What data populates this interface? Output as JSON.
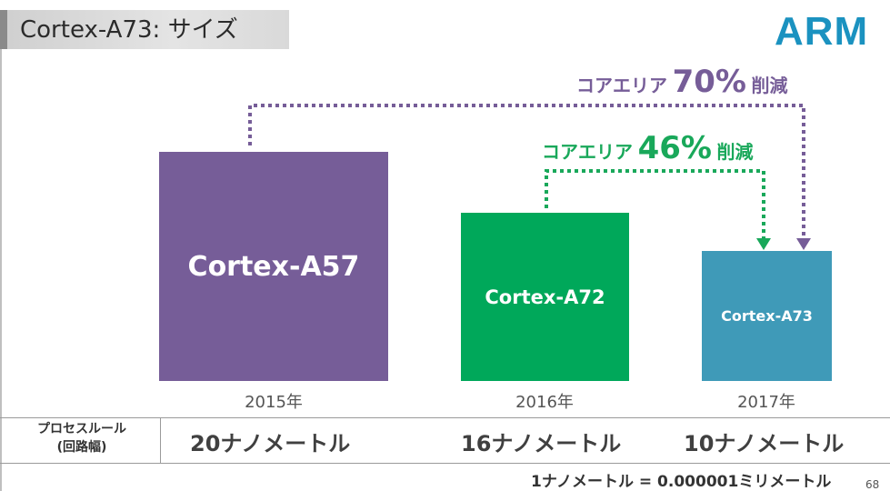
{
  "slide": {
    "title": "Cortex-A73: サイズ",
    "logo": "ARM",
    "page_number": "68"
  },
  "colors": {
    "a57": "#765d98",
    "a72": "#00a85a",
    "a73": "#3f9ab8",
    "arrow_purple": "#765d98",
    "arrow_green": "#19a85a"
  },
  "cores": [
    {
      "name": "Cortex-A57",
      "year": "2015年",
      "process": "20ナノメートル"
    },
    {
      "name": "Cortex-A72",
      "year": "2016年",
      "process": "16ナノメートル"
    },
    {
      "name": "Cortex-A73",
      "year": "2017年",
      "process": "10ナノメートル"
    }
  ],
  "annotations": {
    "purple": {
      "prefix": "コアエリア",
      "percent": "70%",
      "suffix": "削減"
    },
    "green": {
      "prefix": "コアエリア",
      "percent": "46%",
      "suffix": "削減"
    }
  },
  "table": {
    "row_label_line1": "プロセスルール",
    "row_label_line2": "(回路幅)"
  },
  "footnote": "1ナノメートル = 0.000001ミリメートル"
}
